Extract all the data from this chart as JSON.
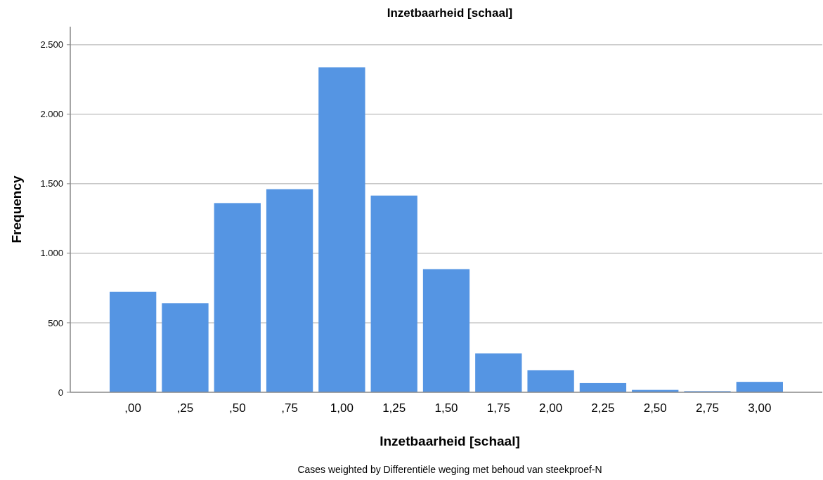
{
  "chart_data": {
    "type": "bar",
    "title": "Inzetbaarheid [schaal]",
    "xlabel": "Inzetbaarheid [schaal]",
    "ylabel": "Frequency",
    "annotations": [
      "Cases weighted by Differentiële weging met behoud van steekproef-N"
    ],
    "categories": [
      ",00",
      ",25",
      ",50",
      ",75",
      "1,00",
      "1,25",
      "1,50",
      "1,75",
      "2,00",
      "2,25",
      "2,50",
      "2,75",
      "3,00"
    ],
    "values": [
      723,
      640,
      1361,
      1461,
      2337,
      1415,
      886,
      280,
      159,
      66,
      17,
      8,
      75
    ],
    "color": "#5595e3",
    "ylim": [
      0,
      2630
    ],
    "yticks": [
      0,
      {
        "value": 500,
        "label": "500"
      },
      {
        "value": 1000,
        "label": "1.000"
      },
      {
        "value": 1500,
        "label": "1.500"
      },
      {
        "value": 2000,
        "label": "2.000"
      },
      {
        "value": 2500,
        "label": "2.500"
      }
    ],
    "grid": "y"
  }
}
